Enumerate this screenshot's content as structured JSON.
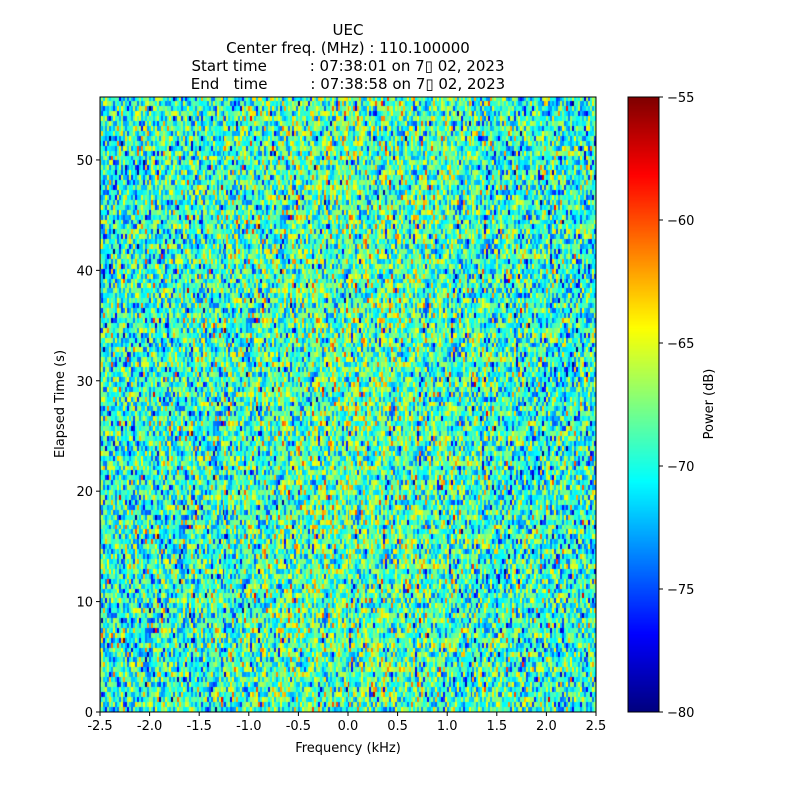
{
  "chart_data": {
    "type": "heatmap",
    "title_lines": [
      "UEC",
      "Center freq. (MHz) : 110.100000",
      "Start time         : 07:38:01 on 7▯ 02, 2023",
      "End   time         : 07:38:58 on 7▯ 02, 2023"
    ],
    "xlabel": "Frequency (kHz)",
    "ylabel": "Elapsed Time (s)",
    "xlim": [
      -2.5,
      2.5
    ],
    "ylim": [
      0,
      55.7
    ],
    "xticks": [
      "-2.5",
      "-2.0",
      "-1.5",
      "-1.0",
      "-0.5",
      "0.0",
      "0.5",
      "1.0",
      "1.5",
      "2.0",
      "2.5"
    ],
    "yticks": [
      "0",
      "10",
      "20",
      "30",
      "40",
      "50"
    ],
    "colorbar": {
      "label": "Power (dB)",
      "range": [
        -80,
        -55
      ],
      "ticks": [
        "−80",
        "−75",
        "−70",
        "−65",
        "−60",
        "−55"
      ],
      "colormap": "jet"
    },
    "noise_model": {
      "description": "random noise spectrogram",
      "mean_db": -70,
      "std_db": 3.5,
      "freq_bins": 250,
      "time_bins": 125
    }
  }
}
